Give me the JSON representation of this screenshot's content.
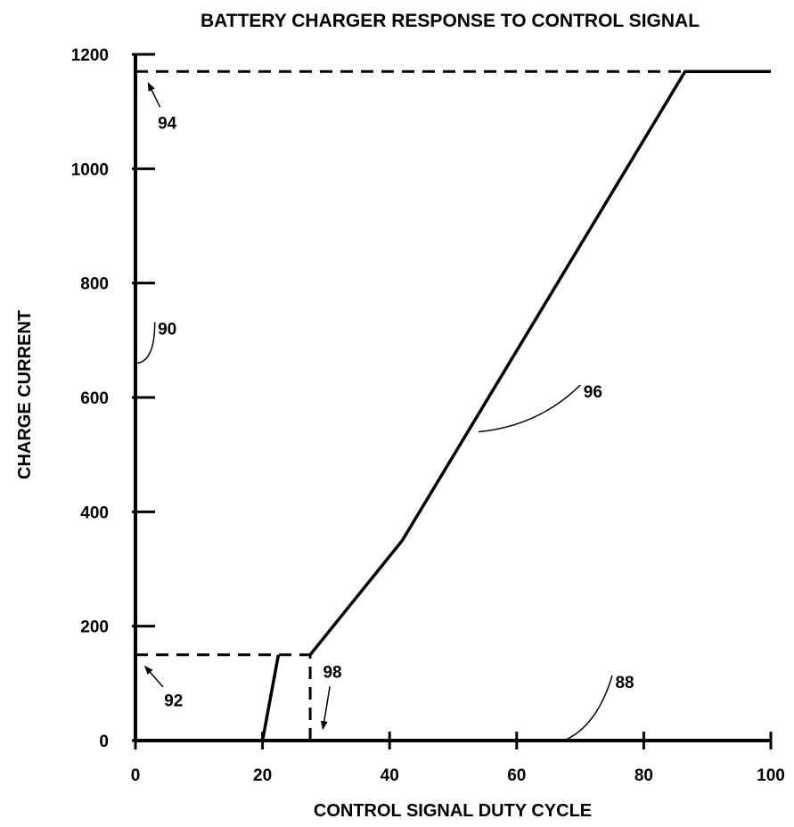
{
  "chart_data": {
    "type": "line",
    "title": "BATTERY CHARGER RESPONSE TO CONTROL SIGNAL",
    "xlabel": "CONTROL SIGNAL DUTY CYCLE",
    "ylabel": "CHARGE CURRENT",
    "xlim": [
      0,
      100
    ],
    "ylim": [
      0,
      1200
    ],
    "xticks": [
      0,
      20,
      40,
      60,
      80,
      100
    ],
    "yticks": [
      0,
      200,
      400,
      600,
      800,
      1000,
      1200
    ],
    "series": [
      {
        "style": "solid",
        "points": [
          [
            20,
            0
          ],
          [
            22.5,
            150
          ]
        ]
      },
      {
        "style": "solid",
        "points": [
          [
            27.5,
            150
          ],
          [
            42,
            350
          ],
          [
            86.5,
            1170
          ],
          [
            100,
            1170
          ]
        ]
      }
    ],
    "reference_lines": [
      {
        "style": "dashed",
        "points": [
          [
            0,
            1170
          ],
          [
            86.5,
            1170
          ]
        ]
      },
      {
        "style": "dashed",
        "points": [
          [
            0,
            150
          ],
          [
            27.5,
            150
          ]
        ]
      },
      {
        "style": "dashed",
        "points": [
          [
            27.5,
            0
          ],
          [
            27.5,
            150
          ]
        ]
      }
    ],
    "annotations": [
      {
        "text": "94",
        "x": 5,
        "y": 1070,
        "target": [
          2,
          1150
        ],
        "kind": "arrow"
      },
      {
        "text": "90",
        "x": 5,
        "y": 710,
        "target": [
          0.3,
          660
        ],
        "kind": "leader"
      },
      {
        "text": "96",
        "x": 72,
        "y": 600,
        "target": [
          54,
          540
        ],
        "kind": "leader"
      },
      {
        "text": "92",
        "x": 6,
        "y": 60,
        "target": [
          1.5,
          130
        ],
        "kind": "arrow"
      },
      {
        "text": "98",
        "x": 31,
        "y": 110,
        "target": [
          29.5,
          20
        ],
        "kind": "arrow"
      },
      {
        "text": "88",
        "x": 77,
        "y": 92,
        "target": [
          67.5,
          0
        ],
        "kind": "leader"
      }
    ]
  }
}
